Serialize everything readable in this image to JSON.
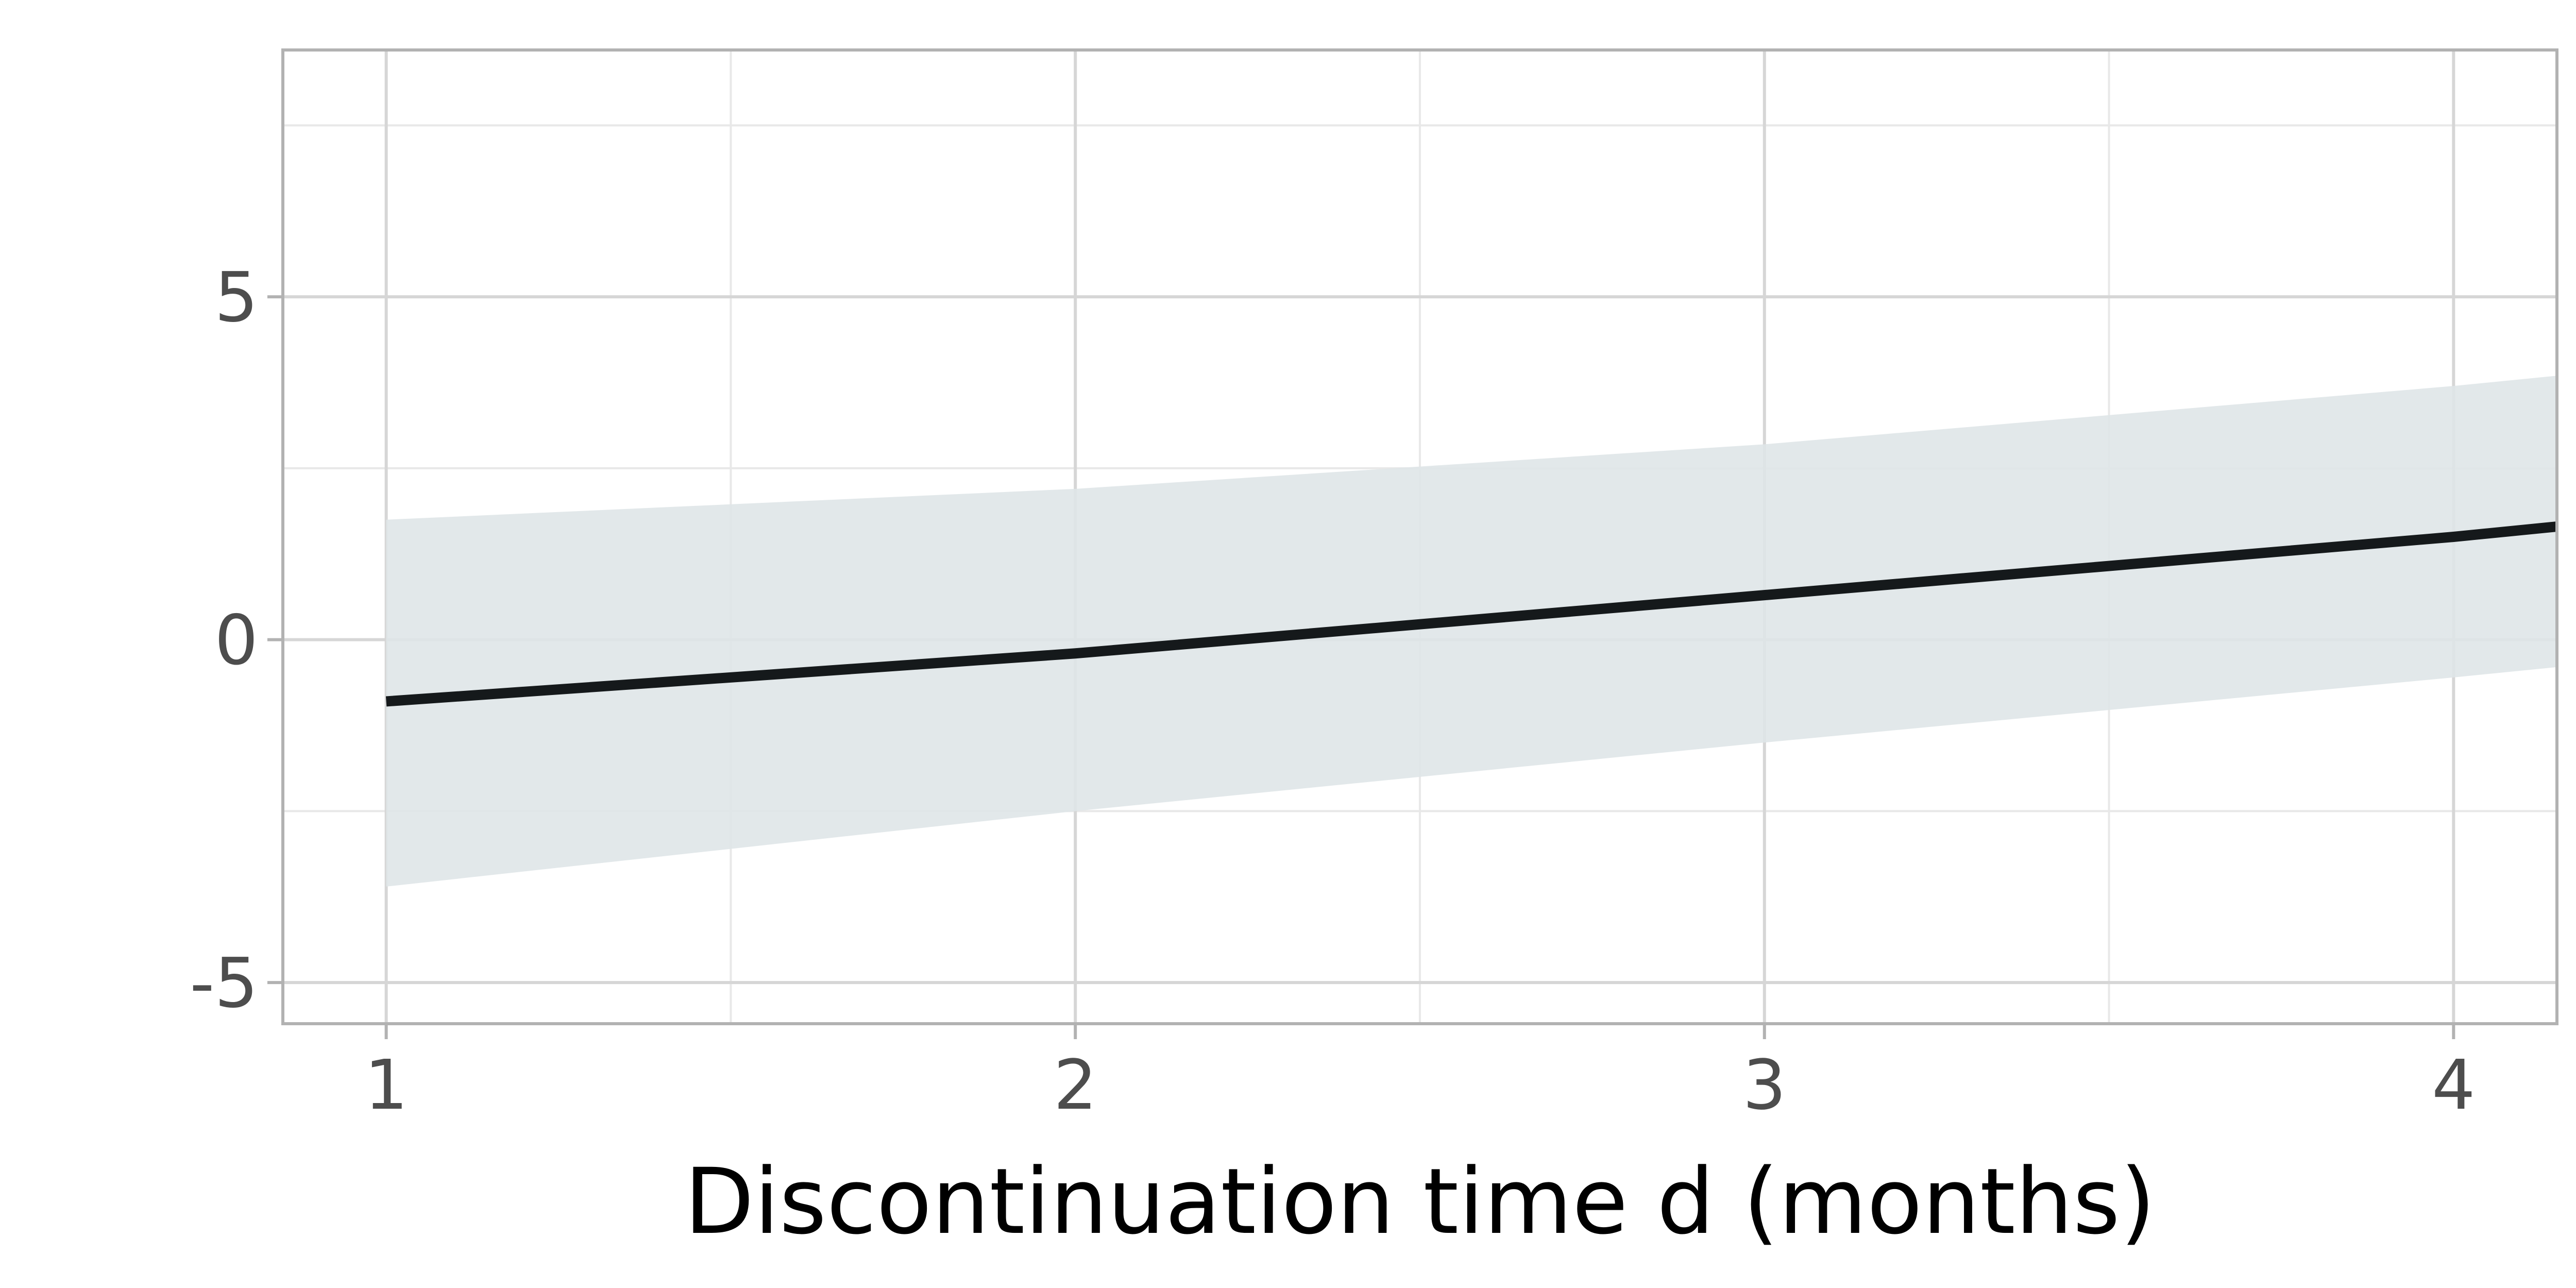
{
  "chart_data": {
    "type": "line",
    "title": "",
    "xlabel": "Discontinuation time d (months)",
    "ylabel": "",
    "xlim": [
      0.85,
      4.15
    ],
    "ylim": [
      -5.6,
      8.6
    ],
    "x_ticks": [
      {
        "value": 1,
        "label": "1"
      },
      {
        "value": 2,
        "label": "2"
      },
      {
        "value": 3,
        "label": "3"
      },
      {
        "value": 4,
        "label": "4"
      }
    ],
    "y_ticks": [
      {
        "value": -5,
        "label": "-5"
      },
      {
        "value": 0,
        "label": "0"
      },
      {
        "value": 5,
        "label": "5"
      }
    ],
    "x_minor": [
      1.5,
      2.5,
      3.5
    ],
    "y_minor": [
      -2.5,
      2.5,
      7.5
    ],
    "grid": true,
    "legend": "none",
    "series": [
      {
        "x": [
          1,
          2,
          3,
          4,
          4.15
        ],
        "y": [
          -0.9,
          -0.2,
          0.65,
          1.5,
          1.65
        ],
        "lower": [
          -3.6,
          -2.5,
          -1.5,
          -0.55,
          -0.4
        ],
        "upper": [
          1.75,
          2.2,
          2.85,
          3.7,
          3.85
        ]
      }
    ],
    "colors": {
      "line": "#15191b",
      "band": "#dfe5e8",
      "grid_major": "#d6d6d6",
      "grid_minor": "#e8e8e8",
      "frame": "#b2b2b2",
      "tick": "#4d4d4d"
    }
  }
}
